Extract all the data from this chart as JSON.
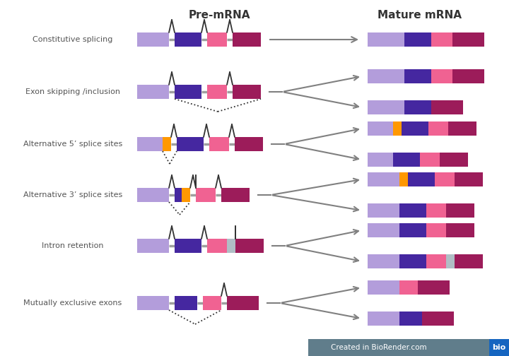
{
  "title_premrna": "Pre-mRNA",
  "title_maturemrna": "Mature mRNA",
  "bg_color": "#ffffff",
  "row_labels": [
    "Constitutive splicing",
    "Exon skipping /inclusion",
    "Alternative 5’ splice sites",
    "Alternative 3’ splice sites",
    "Intron retention",
    "Mutually exclusive exons"
  ],
  "colors": {
    "light_purple": "#b39ddb",
    "dark_purple": "#4527a0",
    "pink": "#f06292",
    "dark_red": "#9c1c5a",
    "orange": "#ff9800",
    "gray": "#b0bec5",
    "intron_line": "#9e9e9e",
    "arrow": "#808080",
    "text": "#555555",
    "splice_arch": "#333333"
  },
  "biorender_text": "Created in BioRender.com",
  "biorender_bg": "#607d8b",
  "bio_bg": "#1565c0"
}
